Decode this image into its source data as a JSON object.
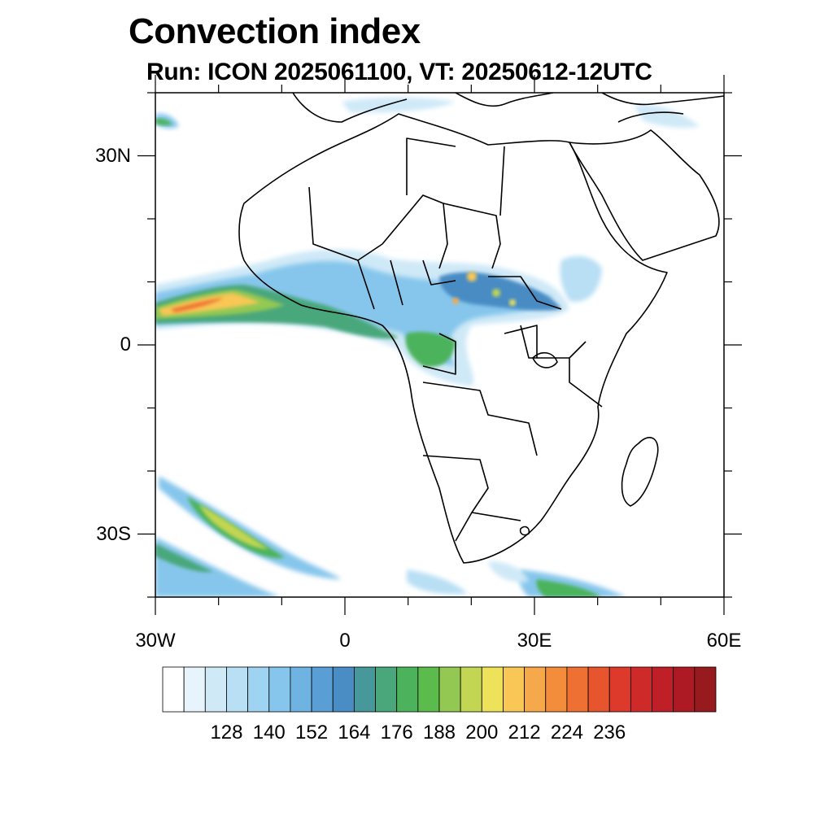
{
  "title": "Convection index",
  "subtitle": "Run: ICON 2025061100,  VT: 20250612-12UTC",
  "map": {
    "region": "Africa",
    "lon_range": [
      -30,
      60
    ],
    "lat_range": [
      -40,
      40
    ],
    "lat_ticks": [
      {
        "value": 30,
        "label": "30N"
      },
      {
        "value": 0,
        "label": "0"
      },
      {
        "value": -30,
        "label": "30S"
      }
    ],
    "lon_ticks": [
      {
        "value": -30,
        "label": "30W"
      },
      {
        "value": 0,
        "label": "0"
      },
      {
        "value": 30,
        "label": "30E"
      },
      {
        "value": 60,
        "label": "60E"
      }
    ]
  },
  "colorbar": {
    "colors": [
      "#ffffff",
      "#e8f4fb",
      "#cfe9f7",
      "#b8dff4",
      "#9ed4f1",
      "#86c6ec",
      "#6fb3e2",
      "#5a9ed6",
      "#4a8cc4",
      "#47989a",
      "#4aa77c",
      "#4cb35c",
      "#5bbb4c",
      "#93c852",
      "#c2d653",
      "#eee25a",
      "#f8c755",
      "#f6a94a",
      "#f38d3c",
      "#ee7032",
      "#e6552d",
      "#dd3a2b",
      "#cf2a2a",
      "#bf1f27",
      "#ad1a23",
      "#971b1e"
    ],
    "labels": [
      "128",
      "140",
      "152",
      "164",
      "176",
      "188",
      "200",
      "212",
      "224",
      "236"
    ]
  }
}
